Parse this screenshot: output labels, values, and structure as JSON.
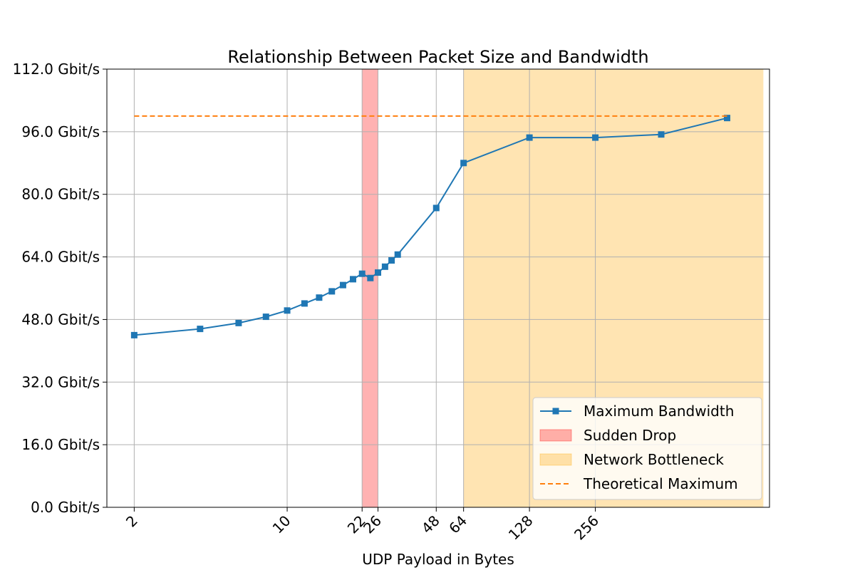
{
  "chart_data": {
    "type": "line",
    "title": "Relationship Between Packet Size and Bandwidth",
    "xlabel": "UDP Payload in Bytes",
    "ylabel": "",
    "x_scale": "log2",
    "xlim": [
      1.5,
      1600
    ],
    "ylim": [
      0,
      112
    ],
    "x_ticks": [
      2,
      10,
      22,
      26,
      48,
      64,
      128,
      256
    ],
    "x_tick_labels": [
      "2",
      "10",
      "22",
      "26",
      "48",
      "64",
      "128",
      "256"
    ],
    "y_ticks": [
      0,
      16,
      32,
      48,
      64,
      80,
      96,
      112
    ],
    "y_tick_labels": [
      "0.0 Gbit/s",
      "16.0 Gbit/s",
      "32.0 Gbit/s",
      "48.0 Gbit/s",
      "64.0 Gbit/s",
      "80.0 Gbit/s",
      "96.0 Gbit/s",
      "112.0 Gbit/s"
    ],
    "grid": true,
    "legend_position": "bottom-right",
    "series": [
      {
        "name": "Maximum Bandwidth",
        "color": "#1f77b4",
        "marker": "square",
        "x": [
          2,
          4,
          6,
          8,
          10,
          12,
          14,
          16,
          18,
          20,
          22,
          24,
          26,
          28,
          30,
          32,
          48,
          64,
          128,
          256,
          512,
          1024
        ],
        "y": [
          44.0,
          45.6,
          47.1,
          48.7,
          50.3,
          52.1,
          53.6,
          55.2,
          56.8,
          58.3,
          59.7,
          58.6,
          60.0,
          61.5,
          63.1,
          64.6,
          76.5,
          88.0,
          94.5,
          94.5,
          95.3,
          99.5
        ]
      },
      {
        "name": "Theoretical Maximum",
        "color": "#ff7f0e",
        "style": "dashed",
        "x": [
          2,
          1024
        ],
        "y": [
          100,
          100
        ]
      }
    ],
    "bands": [
      {
        "name": "Sudden Drop",
        "from": 22,
        "to": 26,
        "color": "#ff0000",
        "alpha": 0.3
      },
      {
        "name": "Network Bottleneck",
        "from": 64,
        "to": 1500,
        "color": "#ffa500",
        "alpha": 0.3
      }
    ],
    "legend": [
      "Maximum Bandwidth",
      "Sudden Drop",
      "Network Bottleneck",
      "Theoretical Maximum"
    ]
  }
}
